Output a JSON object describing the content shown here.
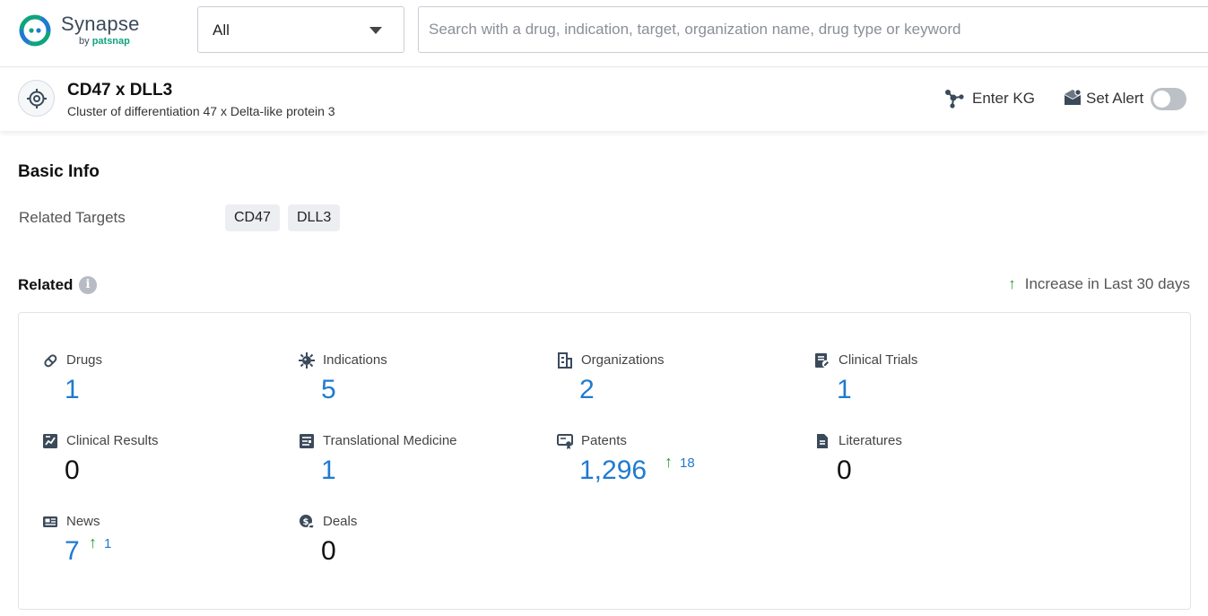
{
  "brand": {
    "name": "Synapse",
    "by": "by",
    "company": "patsnap",
    "colors": {
      "green": "#10a37f",
      "blue": "#1f7ad1",
      "text": "#3b4a5a"
    }
  },
  "header": {
    "scope_selected": "All",
    "search_placeholder": "Search with a drug, indication, target, organization name, drug type or keyword"
  },
  "entity": {
    "icon": "target-crosshair-icon",
    "title": "CD47 x DLL3",
    "subtitle": "Cluster of differentiation 47 x Delta-like protein 3",
    "enter_kg_label": "Enter KG",
    "set_alert_label": "Set Alert",
    "alert_enabled": false
  },
  "basic_info": {
    "title": "Basic Info",
    "related_targets_label": "Related Targets",
    "targets": [
      "CD47",
      "DLL3"
    ]
  },
  "related": {
    "title": "Related",
    "info_icon": "i",
    "increase_legend": "Increase in Last 30 days",
    "stats": [
      {
        "label": "Drugs",
        "value": "1",
        "icon": "pill-icon",
        "linked": true,
        "increase": ""
      },
      {
        "label": "Indications",
        "value": "5",
        "icon": "virus-icon",
        "linked": true,
        "increase": ""
      },
      {
        "label": "Organizations",
        "value": "2",
        "icon": "building-icon",
        "linked": true,
        "increase": ""
      },
      {
        "label": "Clinical Trials",
        "value": "1",
        "icon": "clipboard-edit-icon",
        "linked": true,
        "increase": ""
      },
      {
        "label": "Clinical Results",
        "value": "0",
        "icon": "chart-doc-icon",
        "linked": false,
        "increase": ""
      },
      {
        "label": "Translational Medicine",
        "value": "1",
        "icon": "report-icon",
        "linked": true,
        "increase": ""
      },
      {
        "label": "Patents",
        "value": "1,296",
        "icon": "certificate-icon",
        "linked": true,
        "increase": "18"
      },
      {
        "label": "Literatures",
        "value": "0",
        "icon": "document-icon",
        "linked": false,
        "increase": ""
      },
      {
        "label": "News",
        "value": "7",
        "icon": "newspaper-icon",
        "linked": true,
        "increase": "1"
      },
      {
        "label": "Deals",
        "value": "0",
        "icon": "handshake-coin-icon",
        "linked": false,
        "increase": ""
      }
    ]
  }
}
